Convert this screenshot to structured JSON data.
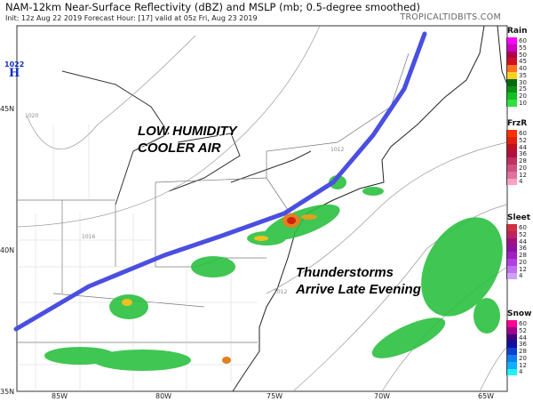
{
  "header": {
    "title": "NAM-12km Near-Surface Reflectivity (dBZ) and MSLP (mb; 0.5-degree smoothed)",
    "subtitle": "Init: 12z Aug 22 2019   Forecast Hour: [17]   valid at 05z Fri, Aug 23 2019",
    "brand": "TROPICALTIDBITS.COM"
  },
  "axes": {
    "lat": [
      "45N",
      "40N",
      "35N"
    ],
    "lon": [
      "85W",
      "80W",
      "75W",
      "70W",
      "65W"
    ]
  },
  "pressure_center": {
    "type": "H",
    "value": "1022",
    "color": "#1030c0"
  },
  "isobar_labels": [
    "1020",
    "1016",
    "1012",
    "1012"
  ],
  "annotations": {
    "line1": "LOW HUMIDITY",
    "line2": "COOLER AIR",
    "line3": "Thunderstorms",
    "line4": "Arrive Late Evening"
  },
  "front_line_color": "#4a4fe0",
  "legends": [
    {
      "title": "Rain",
      "labels": [
        "60",
        "55",
        "50",
        "45",
        "40",
        "35",
        "30",
        "25",
        "20",
        "10"
      ],
      "colors": [
        "#ff00ff",
        "#d000c0",
        "#b00050",
        "#d01020",
        "#ff7020",
        "#ffd020",
        "#006a10",
        "#089018",
        "#10c020",
        "#30e040"
      ]
    },
    {
      "title": "FrzR",
      "labels": [
        "60",
        "52",
        "44",
        "36",
        "28",
        "20",
        "12",
        "4"
      ],
      "colors": [
        "#ff3000",
        "#e02010",
        "#c01020",
        "#b01040",
        "#c03060",
        "#d05080",
        "#e070a0",
        "#ffa0c0"
      ]
    },
    {
      "title": "Sleet",
      "labels": [
        "60",
        "52",
        "44",
        "36",
        "28",
        "20",
        "12",
        "4"
      ],
      "colors": [
        "#d03040",
        "#c02060",
        "#a01080",
        "#9010a0",
        "#a020c0",
        "#b040e0",
        "#c070f0",
        "#d0a0ff"
      ]
    },
    {
      "title": "Snow",
      "labels": [
        "60",
        "52",
        "44",
        "36",
        "28",
        "20",
        "12",
        "4"
      ],
      "colors": [
        "#ff0090",
        "#a00090",
        "#400080",
        "#1010a0",
        "#1040d0",
        "#1080f0",
        "#10b0ff",
        "#20f0ff"
      ]
    }
  ]
}
